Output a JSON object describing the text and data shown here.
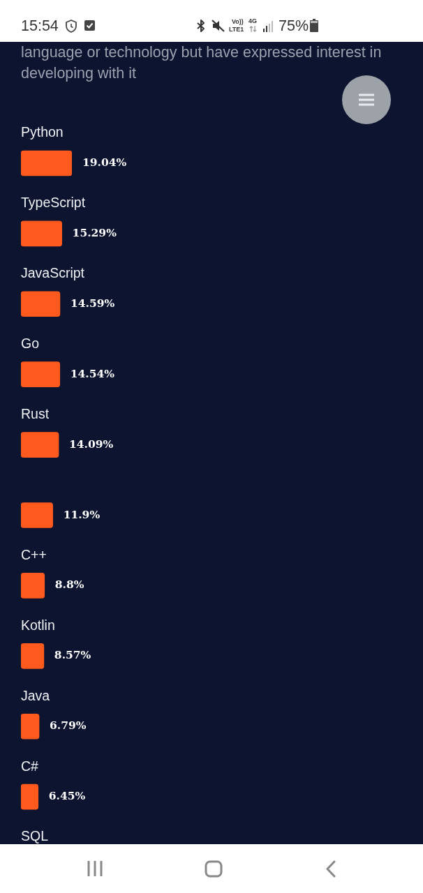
{
  "chart_data": {
    "type": "bar",
    "orientation": "horizontal",
    "subtitle": "language or technology but have expressed interest in developing with it",
    "categories": [
      "Python",
      "TypeScript",
      "JavaScript",
      "Go",
      "Rust",
      null,
      "C++",
      "Kotlin",
      "Java",
      "C#",
      "SQL"
    ],
    "values": [
      19.04,
      15.29,
      14.59,
      14.54,
      14.09,
      11.9,
      8.8,
      8.57,
      6.79,
      6.45,
      null
    ],
    "value_labels": [
      "19.04%",
      "15.29%",
      "14.59%",
      "14.54%",
      "14.09%",
      "11.9%",
      "8.8%",
      "8.57%",
      "6.79%",
      "6.45%",
      null
    ],
    "color": "#ff5a1e",
    "tick_labels": "y",
    "annotations": [
      "15:54",
      "Vo))",
      "LTE1",
      "4G",
      "75%"
    ]
  }
}
